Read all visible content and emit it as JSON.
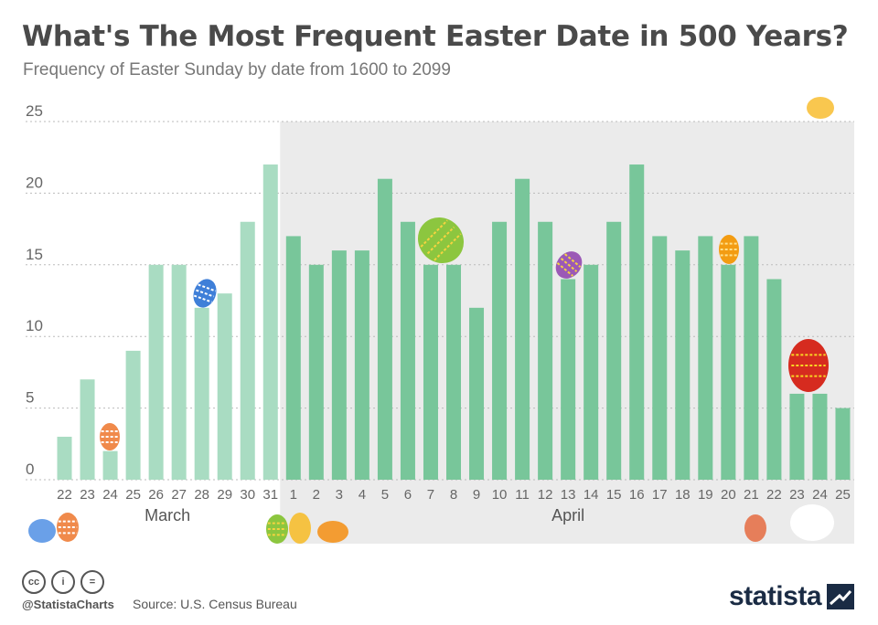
{
  "header": {
    "title": "What's The Most Frequent Easter Date in 500 Years?",
    "subtitle": "Frequency of Easter Sunday by date from 1600 to 2099"
  },
  "footer": {
    "handle": "@StatistaCharts",
    "source": "Source: U.S. Census Bureau",
    "brand": "statista",
    "license_icons": [
      "cc",
      "i",
      "="
    ]
  },
  "colors": {
    "march_bar": "#a9dcc2",
    "april_bar": "#78c69a",
    "april_band": "#ebebeb",
    "grid": "#bbbbbb",
    "text": "#666666"
  },
  "chart_data": {
    "type": "bar",
    "title": "What's The Most Frequent Easter Date in 500 Years?",
    "subtitle": "Frequency of Easter Sunday by date from 1600 to 2099",
    "xlabel": "",
    "ylabel": "",
    "ylim": [
      0,
      25
    ],
    "yticks": [
      0,
      5,
      10,
      15,
      20,
      25
    ],
    "grid": true,
    "month_groups": [
      {
        "label": "March",
        "categories": [
          "22",
          "23",
          "24",
          "25",
          "26",
          "27",
          "28",
          "29",
          "30",
          "31"
        ]
      },
      {
        "label": "April",
        "categories": [
          "1",
          "2",
          "3",
          "4",
          "5",
          "6",
          "7",
          "8",
          "9",
          "10",
          "11",
          "12",
          "13",
          "14",
          "15",
          "16",
          "17",
          "18",
          "19",
          "20",
          "21",
          "22",
          "23",
          "24",
          "25"
        ]
      }
    ],
    "categories": [
      "22",
      "23",
      "24",
      "25",
      "26",
      "27",
      "28",
      "29",
      "30",
      "31",
      "1",
      "2",
      "3",
      "4",
      "5",
      "6",
      "7",
      "8",
      "9",
      "10",
      "11",
      "12",
      "13",
      "14",
      "15",
      "16",
      "17",
      "18",
      "19",
      "20",
      "21",
      "22",
      "23",
      "24",
      "25"
    ],
    "values": [
      3,
      7,
      2,
      9,
      15,
      15,
      12,
      13,
      18,
      22,
      17,
      15,
      16,
      16,
      21,
      18,
      15,
      15,
      12,
      18,
      21,
      18,
      14,
      15,
      18,
      22,
      17,
      16,
      17,
      15,
      17,
      14,
      6,
      6,
      5
    ]
  }
}
